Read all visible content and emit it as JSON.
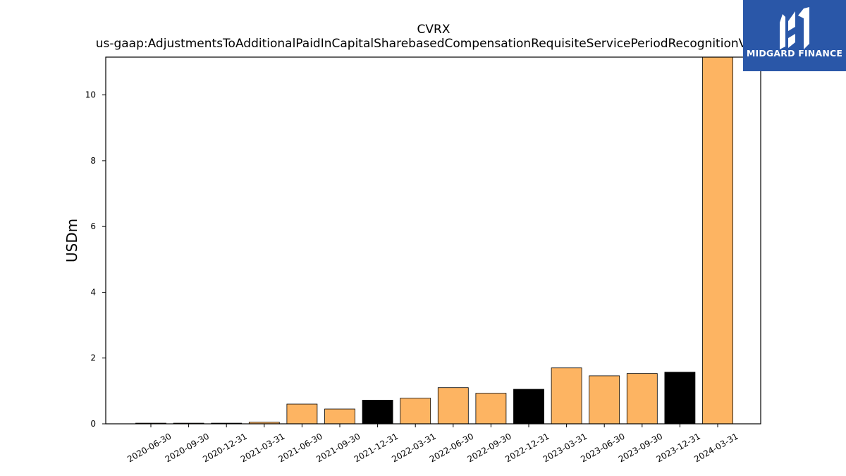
{
  "title": {
    "line1": "CVRX",
    "line2": "us-gaap:AdjustmentsToAdditionalPaidInCapitalSharebasedCompensationRequisiteServicePeriodRecognitionValue"
  },
  "logo": {
    "text": "MIDGARD FINANCE",
    "icon": "midgard-logo-icon",
    "bg_color": "#2a57a8"
  },
  "colors": {
    "default_bar": "#fdb462",
    "q4_bar": "#000000"
  },
  "chart_data": {
    "type": "bar",
    "title": "CVRX us-gaap:AdjustmentsToAdditionalPaidInCapitalSharebasedCompensationRequisiteServicePeriodRecognitionValue",
    "xlabel": "",
    "ylabel": "USDm",
    "ylim": [
      0,
      11.15
    ],
    "yticks": [
      0,
      2,
      4,
      6,
      8,
      10
    ],
    "grid": false,
    "categories": [
      "2020-06-30",
      "2020-09-30",
      "2020-12-31",
      "2021-03-31",
      "2021-06-30",
      "2021-09-30",
      "2021-12-31",
      "2022-03-31",
      "2022-06-30",
      "2022-09-30",
      "2022-12-31",
      "2023-03-31",
      "2023-06-30",
      "2023-09-30",
      "2023-12-31",
      "2024-03-31"
    ],
    "values": [
      0.02,
      0.02,
      0.02,
      0.05,
      0.6,
      0.45,
      0.72,
      0.78,
      1.1,
      0.93,
      1.05,
      1.7,
      1.46,
      1.53,
      1.57,
      11.15
    ],
    "bar_colors": [
      "#fdb462",
      "#fdb462",
      "#000000",
      "#fdb462",
      "#fdb462",
      "#fdb462",
      "#000000",
      "#fdb462",
      "#fdb462",
      "#fdb462",
      "#000000",
      "#fdb462",
      "#fdb462",
      "#fdb462",
      "#000000",
      "#fdb462"
    ]
  }
}
